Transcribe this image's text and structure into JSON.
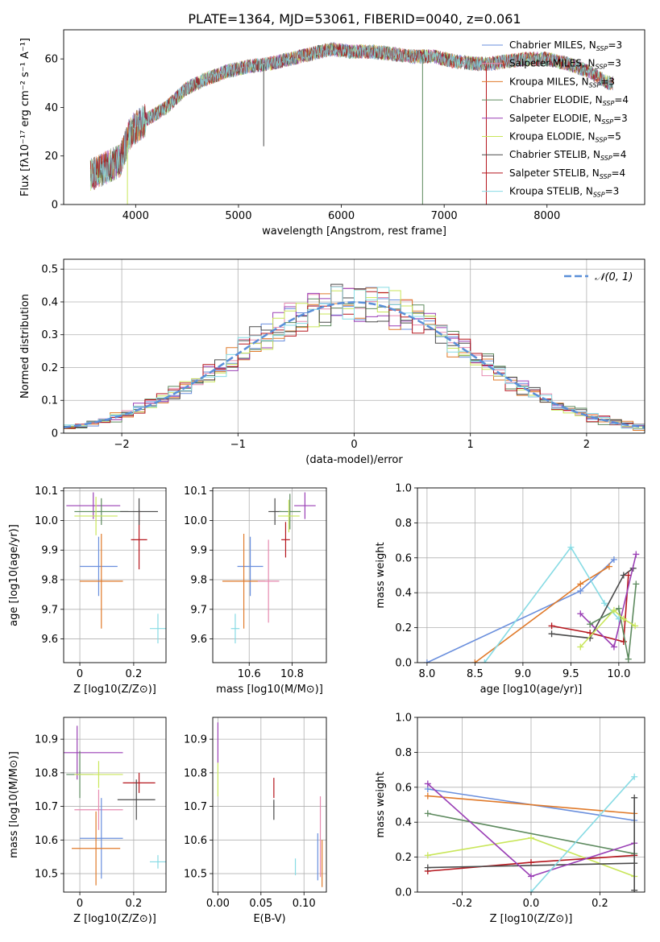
{
  "figure": {
    "title": "PLATE=1364, MJD=53061, FIBERID=0040, z=0.061"
  },
  "series": [
    {
      "name": "Chabrier MILES, N",
      "sub": "SSP",
      "eq": "=3",
      "color": "#6a8fdd"
    },
    {
      "name": "Salpeter MILES, N",
      "sub": "SSP",
      "eq": "=3",
      "color": "#e78ab0"
    },
    {
      "name": "Kroupa MILES, N",
      "sub": "SSP",
      "eq": "=3",
      "color": "#e07a2a"
    },
    {
      "name": "Chabrier ELODIE, N",
      "sub": "SSP",
      "eq": "=4",
      "color": "#5d8a5e"
    },
    {
      "name": "Salpeter ELODIE, N",
      "sub": "SSP",
      "eq": "=3",
      "color": "#9a3fb5"
    },
    {
      "name": "Kroupa ELODIE, N",
      "sub": "SSP",
      "eq": "=5",
      "color": "#c9e65a"
    },
    {
      "name": "Chabrier STELIB, N",
      "sub": "SSP",
      "eq": "=4",
      "color": "#4a4a4a"
    },
    {
      "name": "Salpeter STELIB, N",
      "sub": "SSP",
      "eq": "=4",
      "color": "#b5161d"
    },
    {
      "name": "Kroupa STELIB, N",
      "sub": "SSP",
      "eq": "=3",
      "color": "#87dbe4"
    }
  ],
  "chart_data": [
    {
      "id": "spectrum",
      "type": "line",
      "xlabel": "wavelength [Angstrom, rest frame]",
      "ylabel": "Flux [fλ10⁻¹⁷ erg cm⁻² s⁻¹ A⁻¹]",
      "xlim": [
        3300,
        8950
      ],
      "ylim": [
        0,
        72
      ],
      "xticks": [
        4000,
        5000,
        6000,
        7000,
        8000
      ],
      "yticks": [
        0,
        20,
        40,
        60
      ],
      "grid": false,
      "continuum": [
        [
          3560,
          12
        ],
        [
          3700,
          15
        ],
        [
          3850,
          18
        ],
        [
          3950,
          30
        ],
        [
          4100,
          35
        ],
        [
          4300,
          40
        ],
        [
          4500,
          48
        ],
        [
          4700,
          52
        ],
        [
          4900,
          55
        ],
        [
          5100,
          57
        ],
        [
          5300,
          58
        ],
        [
          5500,
          60
        ],
        [
          5700,
          62
        ],
        [
          5900,
          64
        ],
        [
          6100,
          63
        ],
        [
          6300,
          63
        ],
        [
          6500,
          62
        ],
        [
          6700,
          61
        ],
        [
          6900,
          61
        ],
        [
          7100,
          59
        ],
        [
          7300,
          58
        ],
        [
          7450,
          58
        ],
        [
          7600,
          59
        ],
        [
          7800,
          60
        ],
        [
          8000,
          60
        ],
        [
          8200,
          58
        ],
        [
          8400,
          55
        ],
        [
          8600,
          50
        ]
      ],
      "spikes": [
        {
          "x": 3920,
          "y": 0,
          "color": "#c9e65a"
        },
        {
          "x": 5245,
          "y": 24,
          "color": "#4a4a4a"
        },
        {
          "x": 6790,
          "y": 0,
          "color": "#5d8a5e"
        },
        {
          "x": 7410,
          "y": 0,
          "color": "#b5161d"
        }
      ],
      "legend_position": "right"
    },
    {
      "id": "residuals",
      "type": "histogram",
      "xlabel": "(data-model)/error",
      "ylabel": "Normed distribution",
      "xlim": [
        -2.5,
        2.5
      ],
      "ylim": [
        0,
        0.53
      ],
      "xticks": [
        -2,
        -1,
        0,
        1,
        2
      ],
      "yticks": [
        0.0,
        0.1,
        0.2,
        0.3,
        0.4,
        0.5
      ],
      "grid": true,
      "bin_width": 0.1,
      "reference": {
        "label": "𝒩(0, 1)",
        "color": "#5a8fd8",
        "mean": 0,
        "sigma": 1
      },
      "legend_position": "top-right"
    },
    {
      "id": "age-vs-Z",
      "type": "errorbar",
      "xlabel": "Z [log10(Z/Z⊙)]",
      "ylabel": "age  [log10(age/yr)]",
      "xlim": [
        -0.06,
        0.32
      ],
      "ylim": [
        9.52,
        10.11
      ],
      "xticks": [
        0.0,
        0.2
      ],
      "yticks": [
        9.6,
        9.7,
        9.8,
        9.9,
        10.0,
        10.1
      ],
      "grid": true,
      "points": [
        {
          "x": 0.07,
          "y": 9.845,
          "xerr": 0.07,
          "yerr": 0.1,
          "series": 0
        },
        {
          "x": 0.08,
          "y": 9.795,
          "xerr": 0.08,
          "yerr": 0.16,
          "series": 2
        },
        {
          "x": 0.29,
          "y": 9.635,
          "xerr": 0.03,
          "yerr": 0.05,
          "series": 8
        },
        {
          "x": 0.22,
          "y": 9.935,
          "xerr": 0.03,
          "yerr": 0.1,
          "series": 7
        },
        {
          "x": 0.05,
          "y": 10.05,
          "xerr": 0.1,
          "yerr": 0.045,
          "series": 4
        },
        {
          "x": 0.08,
          "y": 10.03,
          "xerr": 0.1,
          "yerr": 0.045,
          "series": 3
        },
        {
          "x": 0.22,
          "y": 10.03,
          "xerr": 0.07,
          "yerr": 0.045,
          "series": 6
        },
        {
          "x": 0.06,
          "y": 10.015,
          "xerr": 0.08,
          "yerr": 0.065,
          "series": 5
        }
      ]
    },
    {
      "id": "age-vs-mass",
      "type": "errorbar",
      "xlabel": "mass [log10(M/M⊙)]",
      "ylabel": "",
      "xlim": [
        10.43,
        10.96
      ],
      "ylim": [
        9.52,
        10.11
      ],
      "xticks": [
        10.6,
        10.8
      ],
      "yticks": [
        9.6,
        9.7,
        9.8,
        9.9,
        10.0,
        10.1
      ],
      "grid": true,
      "points": [
        {
          "x": 10.605,
          "y": 9.845,
          "xerr": 0.06,
          "yerr": 0.1,
          "series": 0
        },
        {
          "x": 10.575,
          "y": 9.795,
          "xerr": 0.1,
          "yerr": 0.16,
          "series": 2
        },
        {
          "x": 10.69,
          "y": 9.795,
          "xerr": 0.05,
          "yerr": 0.14,
          "series": 1
        },
        {
          "x": 10.535,
          "y": 9.635,
          "xerr": 0.02,
          "yerr": 0.05,
          "series": 8
        },
        {
          "x": 10.77,
          "y": 9.935,
          "xerr": 0.02,
          "yerr": 0.06,
          "series": 7
        },
        {
          "x": 10.72,
          "y": 10.03,
          "xerr": 0.03,
          "yerr": 0.045,
          "series": 6
        },
        {
          "x": 10.86,
          "y": 10.05,
          "xerr": 0.05,
          "yerr": 0.045,
          "series": 4
        },
        {
          "x": 10.79,
          "y": 10.03,
          "xerr": 0.05,
          "yerr": 0.06,
          "series": 3
        },
        {
          "x": 10.785,
          "y": 10.015,
          "xerr": 0.05,
          "yerr": 0.055,
          "series": 5
        }
      ]
    },
    {
      "id": "weight-vs-age",
      "type": "line",
      "xlabel": "age  [log10(age/yr)]",
      "ylabel": "mass weight",
      "xlim": [
        7.9,
        10.27
      ],
      "ylim": [
        0,
        1.0
      ],
      "xticks": [
        8.0,
        8.5,
        9.0,
        9.5,
        10.0
      ],
      "yticks": [
        0.0,
        0.2,
        0.4,
        0.6,
        0.8,
        1.0
      ],
      "grid": true,
      "series_points": [
        {
          "series": 0,
          "x": [
            8.0,
            9.6,
            9.95
          ],
          "y": [
            0.0,
            0.41,
            0.59
          ]
        },
        {
          "series": 2,
          "x": [
            8.5,
            9.6,
            9.9
          ],
          "y": [
            0.0,
            0.45,
            0.55
          ]
        },
        {
          "series": 8,
          "x": [
            8.6,
            9.5,
            9.85,
            10.0
          ],
          "y": [
            0.0,
            0.66,
            0.34,
            0.25
          ]
        },
        {
          "series": 6,
          "x": [
            9.3,
            9.7,
            10.05,
            10.15
          ],
          "y": [
            0.165,
            0.14,
            0.5,
            0.54
          ]
        },
        {
          "series": 7,
          "x": [
            9.3,
            9.7,
            10.05,
            10.1
          ],
          "y": [
            0.21,
            0.17,
            0.12,
            0.5
          ]
        },
        {
          "series": 4,
          "x": [
            9.6,
            9.95,
            10.18
          ],
          "y": [
            0.28,
            0.09,
            0.62
          ]
        },
        {
          "series": 3,
          "x": [
            9.7,
            10.0,
            10.1,
            10.18
          ],
          "y": [
            0.22,
            0.31,
            0.02,
            0.45
          ]
        },
        {
          "series": 5,
          "x": [
            9.6,
            9.95,
            10.05,
            10.17
          ],
          "y": [
            0.09,
            0.3,
            0.25,
            0.21
          ]
        }
      ]
    },
    {
      "id": "mass-vs-Z",
      "type": "errorbar",
      "xlabel": "Z [log10(Z/Z⊙)]",
      "ylabel": "mass [log10(M/M⊙)]",
      "xlim": [
        -0.06,
        0.32
      ],
      "ylim": [
        10.445,
        10.965
      ],
      "xticks": [
        0.0,
        0.2
      ],
      "yticks": [
        10.5,
        10.6,
        10.7,
        10.8,
        10.9
      ],
      "grid": true,
      "points": [
        {
          "x": -0.01,
          "y": 10.86,
          "xerr": 0.17,
          "yerr": 0.08,
          "series": 4
        },
        {
          "x": 0.0,
          "y": 10.795,
          "xerr": 0.05,
          "yerr": 0.07,
          "series": 3
        },
        {
          "x": 0.07,
          "y": 10.795,
          "xerr": 0.09,
          "yerr": 0.04,
          "series": 5
        },
        {
          "x": 0.22,
          "y": 10.77,
          "xerr": 0.06,
          "yerr": 0.03,
          "series": 7
        },
        {
          "x": 0.21,
          "y": 10.72,
          "xerr": 0.07,
          "yerr": 0.06,
          "series": 6
        },
        {
          "x": 0.07,
          "y": 10.69,
          "xerr": 0.09,
          "yerr": 0.06,
          "series": 1
        },
        {
          "x": 0.08,
          "y": 10.605,
          "xerr": 0.08,
          "yerr": 0.12,
          "series": 0
        },
        {
          "x": 0.06,
          "y": 10.575,
          "xerr": 0.09,
          "yerr": 0.11,
          "series": 2
        },
        {
          "x": 0.29,
          "y": 10.535,
          "xerr": 0.03,
          "yerr": 0.02,
          "series": 8
        }
      ]
    },
    {
      "id": "mass-vs-ebv",
      "type": "errorbar",
      "xlabel": "E(B-V)",
      "ylabel": "",
      "xlim": [
        -0.006,
        0.126
      ],
      "ylim": [
        10.445,
        10.965
      ],
      "xticks": [
        0.0,
        0.05,
        0.1
      ],
      "yticks": [
        10.5,
        10.6,
        10.7,
        10.8,
        10.9
      ],
      "grid": true,
      "points": [
        {
          "x": 0.0,
          "y": 10.89,
          "xerr": 0,
          "yerr": 0.06,
          "series": 4
        },
        {
          "x": 0.0,
          "y": 10.78,
          "xerr": 0,
          "yerr": 0.05,
          "series": 5
        },
        {
          "x": 0.065,
          "y": 10.755,
          "xerr": 0,
          "yerr": 0.03,
          "series": 7
        },
        {
          "x": 0.065,
          "y": 10.69,
          "xerr": 0,
          "yerr": 0.03,
          "series": 6
        },
        {
          "x": 0.09,
          "y": 10.52,
          "xerr": 0,
          "yerr": 0.025,
          "series": 8
        },
        {
          "x": 0.116,
          "y": 10.55,
          "xerr": 0,
          "yerr": 0.07,
          "series": 0
        },
        {
          "x": 0.119,
          "y": 10.61,
          "xerr": 0,
          "yerr": 0.12,
          "series": 1
        },
        {
          "x": 0.121,
          "y": 10.53,
          "xerr": 0,
          "yerr": 0.07,
          "series": 2
        }
      ]
    },
    {
      "id": "weight-vs-Z",
      "type": "line",
      "xlabel": "Z [log10(Z/Z⊙)]",
      "ylabel": "mass weight",
      "xlim": [
        -0.33,
        0.33
      ],
      "ylim": [
        0,
        1.0
      ],
      "xticks": [
        -0.2,
        0.0,
        0.2
      ],
      "yticks": [
        0.0,
        0.2,
        0.4,
        0.6,
        0.8,
        1.0
      ],
      "grid": true,
      "series_points": [
        {
          "series": 0,
          "x": [
            -0.3,
            0.3
          ],
          "y": [
            0.59,
            0.41
          ]
        },
        {
          "series": 2,
          "x": [
            -0.3,
            0.3
          ],
          "y": [
            0.55,
            0.45
          ]
        },
        {
          "series": 3,
          "x": [
            -0.3,
            0.3
          ],
          "y": [
            0.45,
            0.22
          ]
        },
        {
          "series": 5,
          "x": [
            -0.3,
            0.0,
            0.3
          ],
          "y": [
            0.21,
            0.31,
            0.09
          ]
        },
        {
          "series": 7,
          "x": [
            -0.3,
            0.0,
            0.3
          ],
          "y": [
            0.12,
            0.17,
            0.21
          ]
        },
        {
          "series": 6,
          "x": [
            -0.3,
            0.3
          ],
          "y": [
            0.14,
            0.165
          ]
        },
        {
          "series": 4,
          "x": [
            -0.3,
            0.0,
            0.3
          ],
          "y": [
            0.62,
            0.09,
            0.28
          ]
        },
        {
          "series": 8,
          "x": [
            0.0,
            0.3
          ],
          "y": [
            0.0,
            0.66
          ]
        },
        {
          "series": 6,
          "x": [
            0.3,
            0.3
          ],
          "y": [
            0.01,
            0.54
          ]
        }
      ]
    }
  ]
}
